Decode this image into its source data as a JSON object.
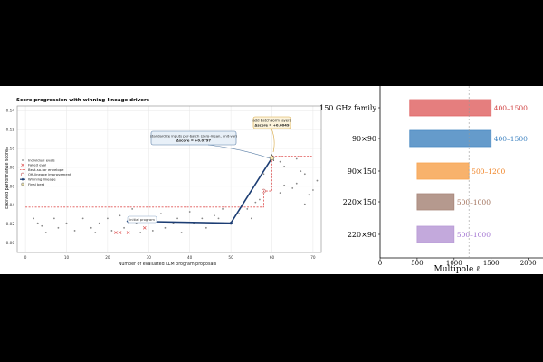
{
  "chart_data": [
    {
      "type": "scatter",
      "title": "Score progression with winning-lineage drivers",
      "xlabel": "Number of evaluated LLM program proposals",
      "ylabel": "Evolved performance score",
      "xlim": [
        -2,
        72
      ],
      "ylim": [
        -0.01,
        0.145
      ],
      "xticks": [
        "0",
        "10",
        "20",
        "30",
        "40",
        "50",
        "60",
        "70"
      ],
      "yticks": [
        "0.00",
        "0.02",
        "0.04",
        "0.06",
        "0.08",
        "0.10",
        "0.12",
        "0.14"
      ],
      "grid": true,
      "legend_position": "center-left",
      "legend": [
        "Individual evals",
        "Failed eval",
        "Best-so-far envelope",
        "Off-lineage improvement",
        "Winning lineage",
        "Final best"
      ],
      "series": [
        {
          "name": "Individual evals",
          "points": [
            [
              2,
              0.026
            ],
            [
              3,
              0.021
            ],
            [
              4,
              0.018
            ],
            [
              5,
              0.011
            ],
            [
              7,
              0.026
            ],
            [
              8,
              0.016
            ],
            [
              10,
              0.021
            ],
            [
              12,
              0.013
            ],
            [
              14,
              0.026
            ],
            [
              16,
              0.016
            ],
            [
              17,
              0.011
            ],
            [
              18,
              0.021
            ],
            [
              20,
              0.026
            ],
            [
              21,
              0.013
            ],
            [
              23,
              0.029
            ],
            [
              24,
              0.016
            ],
            [
              26,
              0.036
            ],
            [
              27,
              0.021
            ],
            [
              28,
              0.011
            ],
            [
              30,
              0.026
            ],
            [
              31,
              0.013
            ],
            [
              33,
              0.031
            ],
            [
              34,
              0.016
            ],
            [
              36,
              0.021
            ],
            [
              37,
              0.026
            ],
            [
              38,
              0.011
            ],
            [
              40,
              0.033
            ],
            [
              41,
              0.021
            ],
            [
              43,
              0.026
            ],
            [
              44,
              0.016
            ],
            [
              46,
              0.029
            ],
            [
              47,
              0.026
            ],
            [
              48,
              0.036
            ],
            [
              52,
              0.031
            ],
            [
              54,
              0.036
            ],
            [
              55,
              0.026
            ],
            [
              56,
              0.043
            ],
            [
              57,
              0.046
            ],
            [
              58,
              0.073
            ],
            [
              62,
              0.053
            ],
            [
              63,
              0.061
            ],
            [
              65,
              0.058
            ],
            [
              66,
              0.063
            ],
            [
              67,
              0.076
            ],
            [
              68,
              0.041
            ],
            [
              69,
              0.051
            ],
            [
              70,
              0.056
            ],
            [
              71,
              0.066
            ],
            [
              62,
              0.086
            ],
            [
              63,
              0.081
            ],
            [
              66,
              0.089
            ],
            [
              68,
              0.073
            ]
          ]
        },
        {
          "name": "Failed eval",
          "points": [
            [
              22,
              0.011
            ],
            [
              23,
              0.011
            ],
            [
              25,
              0.011
            ],
            [
              29,
              0.016
            ]
          ]
        },
        {
          "name": "Best-so-far envelope",
          "points": [
            [
              0,
              0.038
            ],
            [
              58,
              0.038
            ],
            [
              58,
              0.055
            ],
            [
              60,
              0.055
            ],
            [
              60,
              0.092
            ],
            [
              70,
              0.092
            ]
          ]
        },
        {
          "name": "Off-lineage improvement",
          "points": [
            [
              58,
              0.055
            ]
          ]
        },
        {
          "name": "Winning lineage",
          "points": [
            [
              25,
              0.023
            ],
            [
              50,
              0.021
            ],
            [
              60,
              0.09
            ]
          ]
        },
        {
          "name": "Final best",
          "points": [
            [
              60,
              0.09
            ]
          ]
        }
      ],
      "annotations": [
        {
          "text": "initial program",
          "x": 25,
          "y": 0.023
        },
        {
          "lines": [
            "standardize inputs per-batch (zero-mean, unit-var)",
            "Δscore = +0.0797"
          ],
          "x": 50,
          "y": 0.021
        },
        {
          "lines": [
            "add BatchNorm layers",
            "Δscore = +0.0049"
          ],
          "x": 60,
          "y": 0.09
        }
      ]
    },
    {
      "type": "bar",
      "orientation": "horizontal",
      "xlabel": "Multipole ℓ",
      "xlim": [
        0,
        2200
      ],
      "xticks": [
        "0",
        "500",
        "1000",
        "1500",
        "2000"
      ],
      "reference_line": 1200,
      "categories": [
        "150 GHz family",
        "90×90",
        "90×150",
        "220×150",
        "220×90"
      ],
      "ranges": [
        [
          400,
          1500
        ],
        [
          400,
          1500
        ],
        [
          500,
          1200
        ],
        [
          500,
          1000
        ],
        [
          500,
          1000
        ]
      ],
      "range_labels": [
        "400–1500",
        "400–1500",
        "500–1200",
        "500–1000",
        "500–1000"
      ],
      "colors": [
        "#e06767",
        "#4a8ac2",
        "#f7a552",
        "#a8877a",
        "#b89ad6"
      ],
      "label_colors": [
        "#d04040",
        "#3a80c0",
        "#f08020",
        "#a0705a",
        "#a070d0"
      ]
    }
  ]
}
